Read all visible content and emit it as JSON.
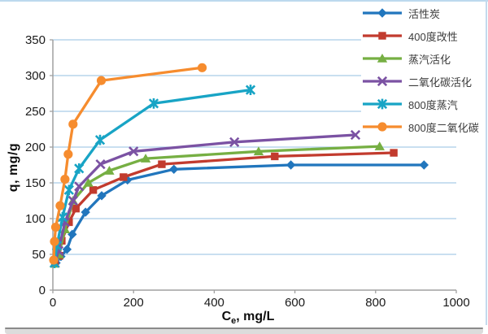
{
  "chart_data": {
    "type": "line",
    "title": "",
    "xlabel": "Ce, mg/L",
    "xlabel_parts": {
      "main": "C",
      "sub": "e",
      "rest": ", mg/L"
    },
    "ylabel": "q, mg/g",
    "xlim": [
      0,
      1000
    ],
    "ylim": [
      0,
      350
    ],
    "xticks": [
      0,
      200,
      400,
      600,
      800,
      1000
    ],
    "yticks": [
      0,
      50,
      100,
      150,
      200,
      250,
      300,
      350
    ],
    "grid": "horizontal-major-only",
    "gridline_color": "#a9cce8",
    "axis_line_color": "#a0a0a0",
    "tick_label_color": "#1a1a1a",
    "legend_position": "top-right-inside",
    "series": [
      {
        "name": "活性炭",
        "color": "#2176bd",
        "marker": "diamond",
        "points": [
          [
            8,
            38
          ],
          [
            20,
            47
          ],
          [
            35,
            57
          ],
          [
            48,
            78
          ],
          [
            81,
            109
          ],
          [
            121,
            132
          ],
          [
            185,
            154
          ],
          [
            300,
            169
          ],
          [
            590,
            175
          ],
          [
            920,
            175
          ]
        ]
      },
      {
        "name": "400度改性",
        "color": "#c23b2e",
        "marker": "square",
        "points": [
          [
            5,
            40
          ],
          [
            16,
            48
          ],
          [
            22,
            69
          ],
          [
            40,
            95
          ],
          [
            57,
            114
          ],
          [
            100,
            140
          ],
          [
            175,
            158
          ],
          [
            270,
            176
          ],
          [
            550,
            187
          ],
          [
            845,
            192
          ]
        ]
      },
      {
        "name": "蒸汽活化",
        "color": "#76af43",
        "marker": "triangle",
        "points": [
          [
            5,
            37
          ],
          [
            15,
            50
          ],
          [
            30,
            85
          ],
          [
            50,
            125
          ],
          [
            88,
            150
          ],
          [
            140,
            167
          ],
          [
            230,
            184
          ],
          [
            510,
            194
          ],
          [
            810,
            201
          ]
        ]
      },
      {
        "name": "二氧化碳活化",
        "color": "#7b52a3",
        "marker": "x",
        "points": [
          [
            5,
            38
          ],
          [
            14,
            55
          ],
          [
            30,
            95
          ],
          [
            50,
            125
          ],
          [
            65,
            145
          ],
          [
            118,
            176
          ],
          [
            200,
            194
          ],
          [
            450,
            207
          ],
          [
            750,
            217
          ]
        ]
      },
      {
        "name": "800度蒸汽",
        "color": "#18a4c5",
        "marker": "asterisk",
        "points": [
          [
            4,
            38
          ],
          [
            10,
            62
          ],
          [
            24,
            102
          ],
          [
            40,
            140
          ],
          [
            65,
            170
          ],
          [
            117,
            210
          ],
          [
            250,
            261
          ],
          [
            490,
            280
          ]
        ]
      },
      {
        "name": "800度二氧化碳",
        "color": "#f68c2e",
        "marker": "circle",
        "points": [
          [
            2,
            42
          ],
          [
            4,
            68
          ],
          [
            7,
            88
          ],
          [
            18,
            118
          ],
          [
            30,
            155
          ],
          [
            38,
            190
          ],
          [
            50,
            232
          ],
          [
            120,
            293
          ],
          [
            370,
            311
          ]
        ]
      }
    ]
  },
  "decor": {
    "top_line_color": "#bcd9ee",
    "right_line_color": "#c3daee",
    "bottom_line_color": "#8a8a8a",
    "bottom_band_color": "#dcdcdc"
  }
}
